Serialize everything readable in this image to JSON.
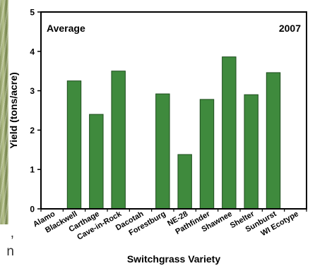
{
  "page_fragments": {
    "caption_lines": [
      ",",
      "n"
    ]
  },
  "chart_data": {
    "type": "bar",
    "annotation_left": "Average",
    "annotation_right": "2007",
    "xlabel": "Switchgrass Variety",
    "ylabel": "Yield (tons/acre)",
    "ylim": [
      0,
      5
    ],
    "yticks": [
      0,
      1,
      2,
      3,
      4,
      5
    ],
    "categories": [
      "Alamo",
      "Blackwell",
      "Carthage",
      "Cave-in-Rock",
      "Dacotah",
      "Forestburg",
      "NE-28",
      "Pathfinder",
      "Shawnee",
      "Shelter",
      "Sunburst",
      "WI Ecotype"
    ],
    "values": [
      0,
      3.25,
      2.4,
      3.5,
      0,
      2.92,
      1.38,
      2.78,
      3.86,
      2.9,
      3.46,
      0
    ],
    "bar_color": "#3f8a3d",
    "bar_stroke": "#1e4d1e",
    "grid": false,
    "legend": "none"
  }
}
